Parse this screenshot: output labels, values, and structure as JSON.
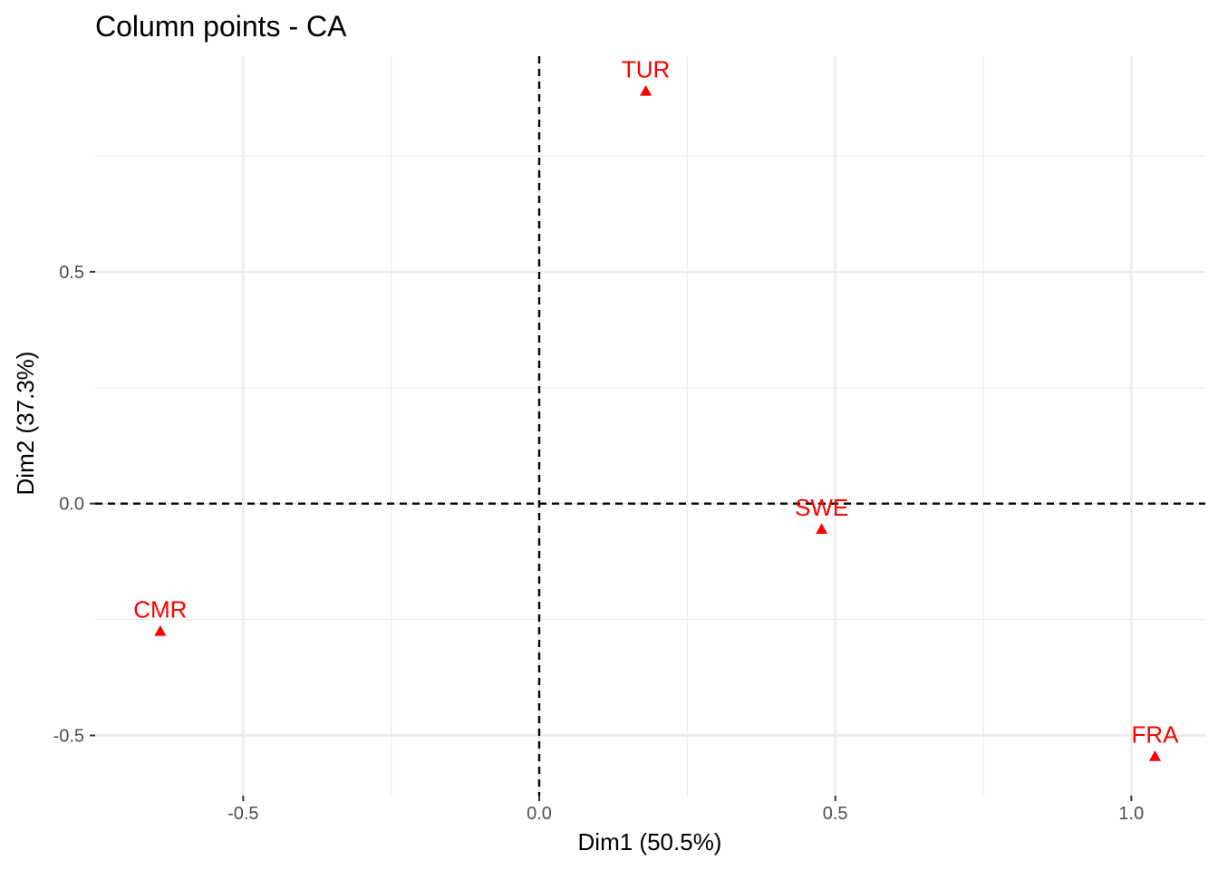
{
  "chart_data": {
    "type": "scatter",
    "title": "Column points - CA",
    "xlabel": "Dim1 (50.5%)",
    "ylabel": "Dim2 (37.3%)",
    "xlim": [
      -0.75,
      1.125
    ],
    "ylim": [
      -0.63,
      0.965
    ],
    "x_ticks": [
      {
        "value": -0.5,
        "label": "-0.5"
      },
      {
        "value": 0.0,
        "label": "0.0"
      },
      {
        "value": 0.5,
        "label": "0.5"
      },
      {
        "value": 1.0,
        "label": "1.0"
      }
    ],
    "y_ticks": [
      {
        "value": 0.5,
        "label": "0.5"
      },
      {
        "value": 0.0,
        "label": "0.0"
      },
      {
        "value": -0.5,
        "label": "-0.5"
      }
    ],
    "x_minor": [
      -0.25,
      0.25,
      0.75
    ],
    "y_minor": [
      0.75,
      0.25,
      -0.25
    ],
    "grid": true,
    "reference_lines": {
      "x": 0,
      "y": 0,
      "style": "dashed"
    },
    "marker": "triangle",
    "color": "#ff0000",
    "points": [
      {
        "label": "TUR",
        "x": 0.18,
        "y": 0.89
      },
      {
        "label": "SWE",
        "x": 0.477,
        "y": -0.055
      },
      {
        "label": "CMR",
        "x": -0.64,
        "y": -0.275
      },
      {
        "label": "FRA",
        "x": 1.04,
        "y": -0.545
      }
    ]
  }
}
